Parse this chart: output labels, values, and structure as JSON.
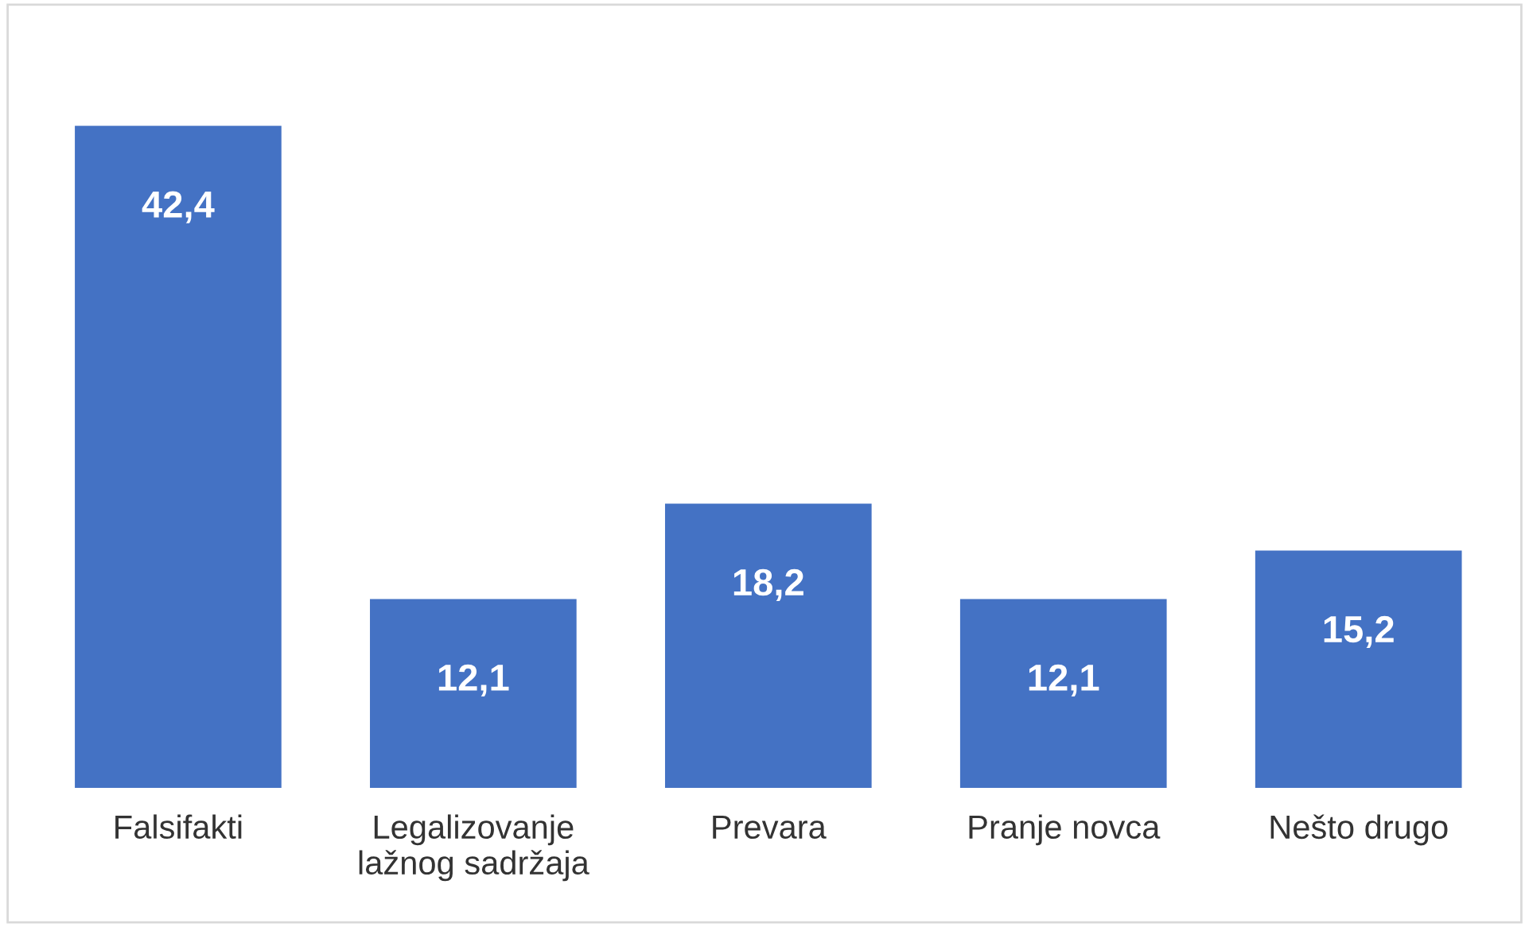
{
  "chart_data": {
    "type": "bar",
    "categories": [
      "Falsifakti",
      "Legalizovanje\nlažnog sadržaja",
      "Prevara",
      "Pranje novca",
      "Nešto drugo"
    ],
    "values": [
      42.4,
      12.1,
      18.2,
      12.1,
      15.2
    ],
    "value_labels": [
      "42,4",
      "12,1",
      "18,2",
      "12,1",
      "15,2"
    ],
    "color": "#4472c4",
    "grid": false,
    "legend": false
  }
}
